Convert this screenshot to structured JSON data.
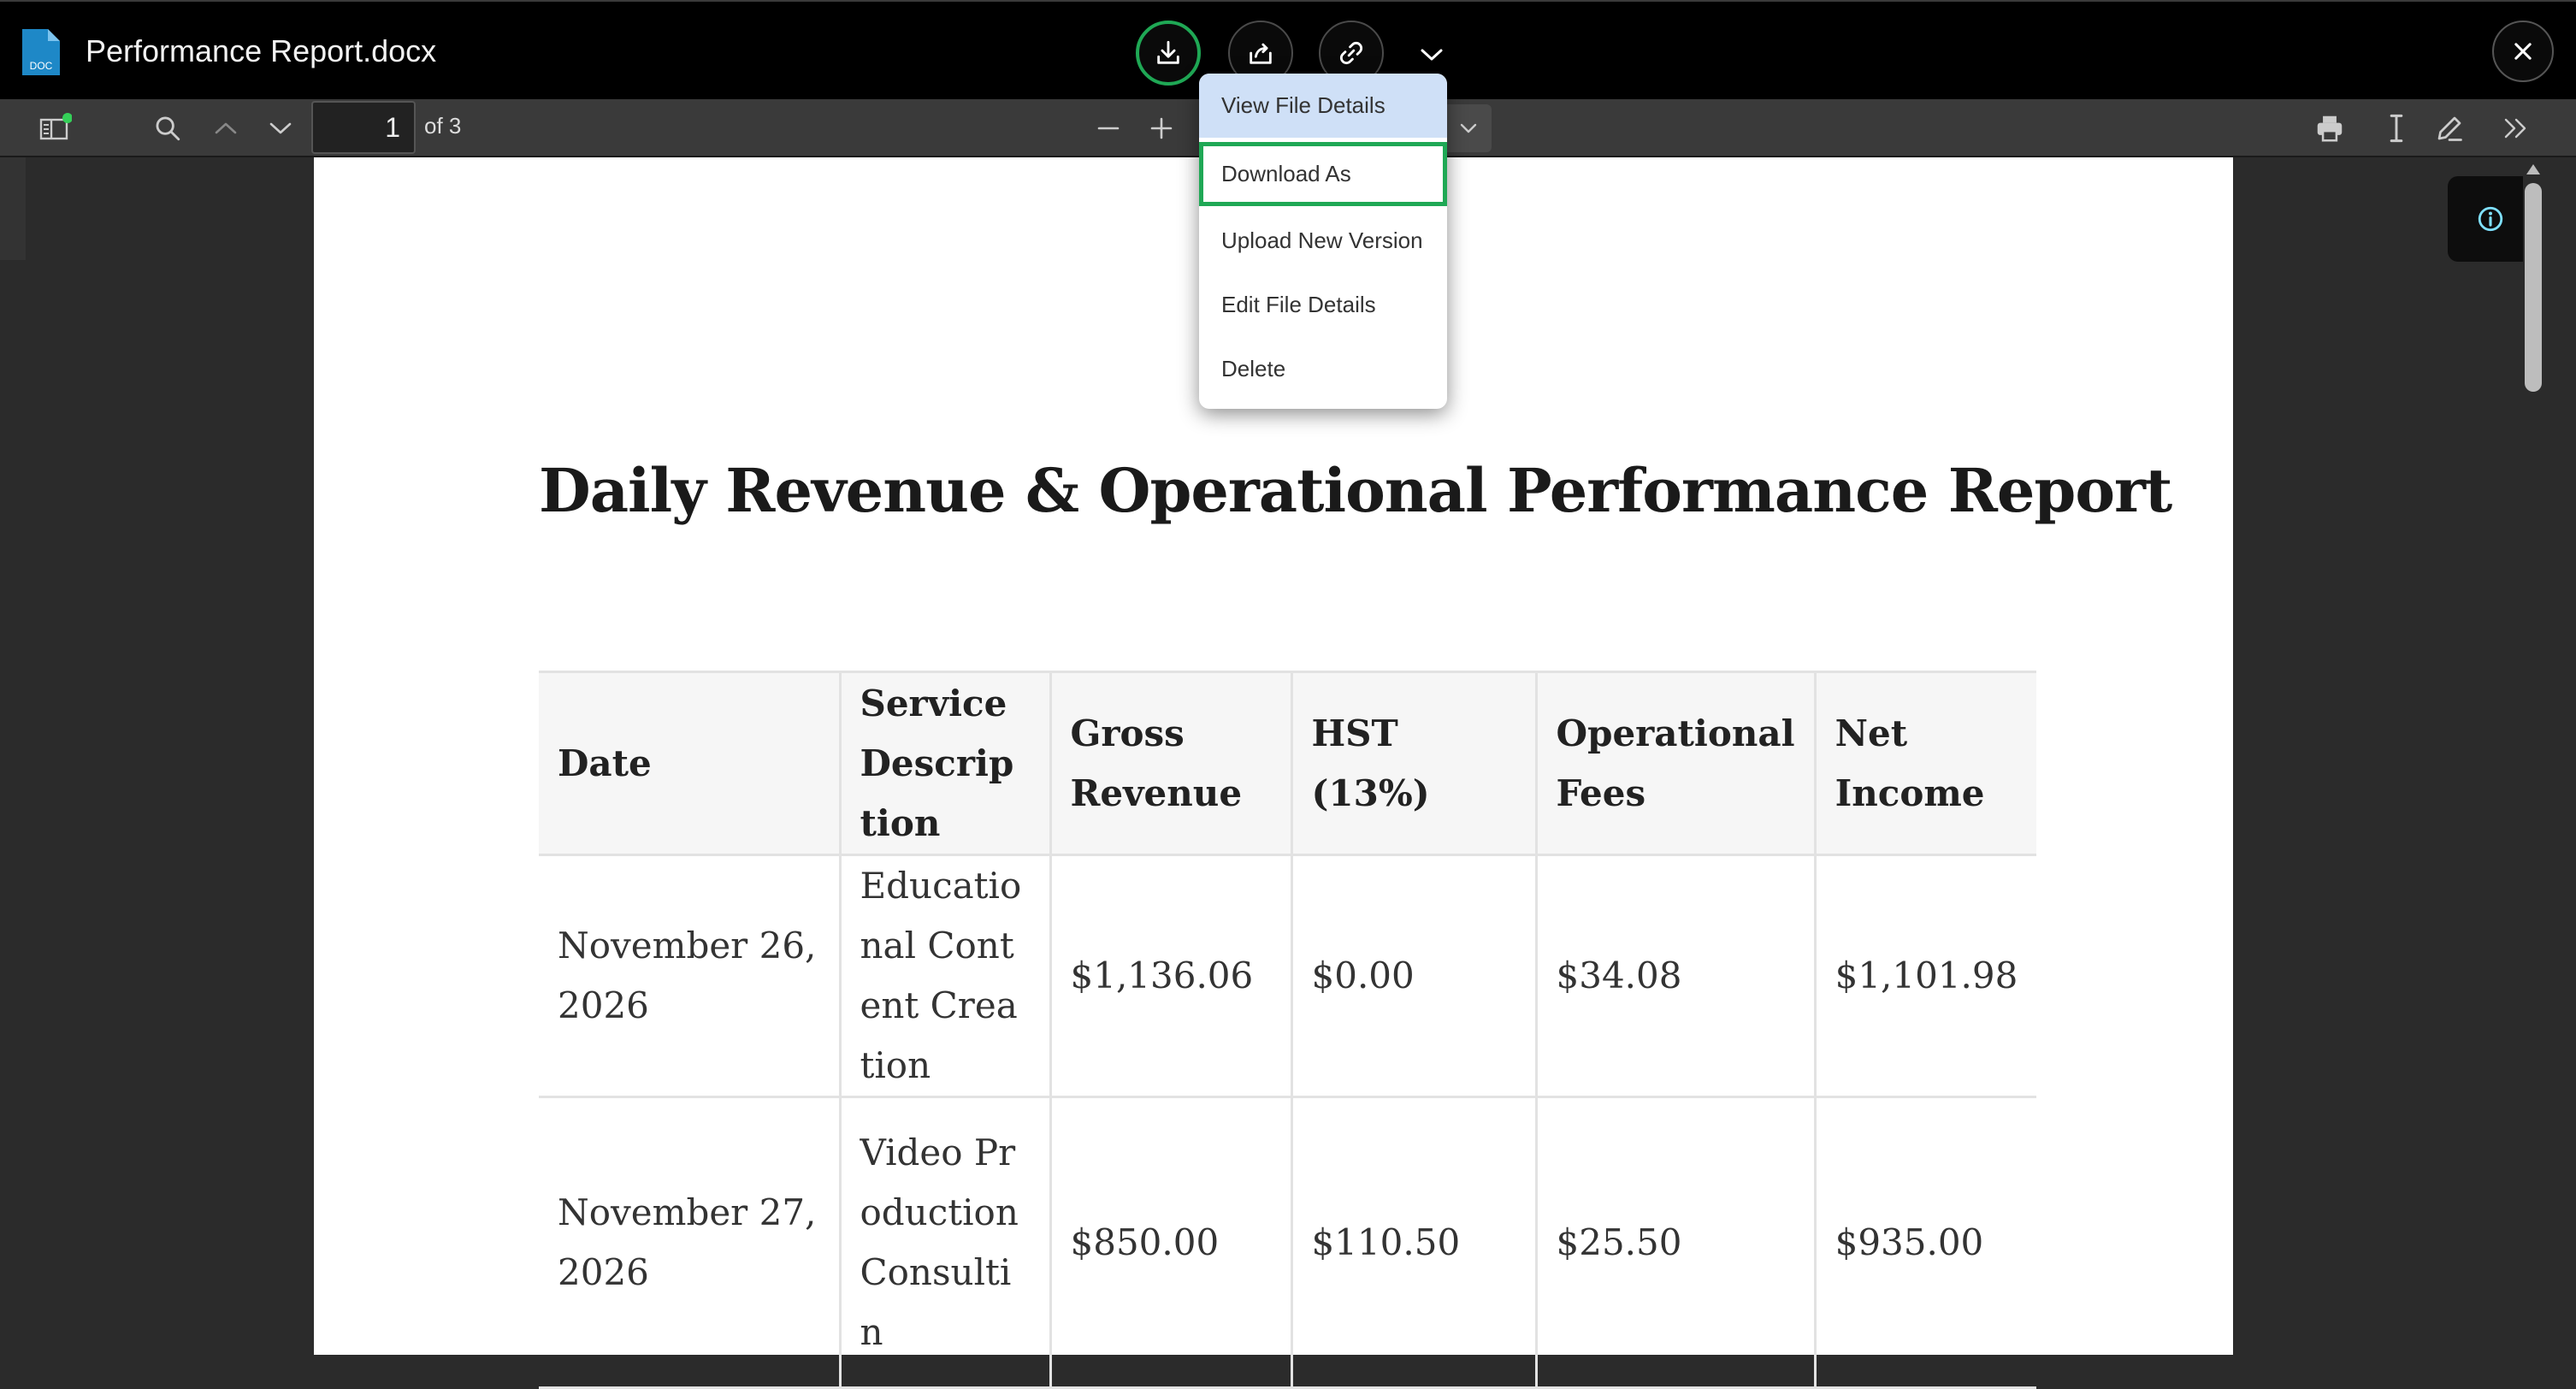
{
  "header": {
    "file_name": "Performance Report.docx",
    "file_badge": "DOC"
  },
  "toolbar": {
    "page_current": "1",
    "page_total_label": "of 3"
  },
  "menu": {
    "items": [
      {
        "label": "View File Details"
      },
      {
        "label": "Download As"
      },
      {
        "label": "Upload New Version"
      },
      {
        "label": "Edit File Details"
      },
      {
        "label": "Delete"
      }
    ]
  },
  "document": {
    "title": "Daily Revenue & Operational Performance Report",
    "columns": [
      "Date",
      "Service Description",
      "Gross Revenue",
      "HST (13%)",
      "Operational Fees",
      "Net Income"
    ],
    "rows": [
      {
        "date": "November 26, 2026",
        "service": "Educational Content Creation",
        "gross": "$1,136.06",
        "hst": "$0.00",
        "fees": "$34.08",
        "net": "$1,101.98"
      },
      {
        "date": "November 27, 2026",
        "service": "Video Production Consultin",
        "gross": "$850.00",
        "hst": "$110.50",
        "fees": "$25.50",
        "net": "$935.00"
      }
    ]
  },
  "colors": {
    "accent_green": "#1fa855",
    "file_icon_blue": "#1e88c7",
    "menu_highlight": "#cfe0f7"
  }
}
